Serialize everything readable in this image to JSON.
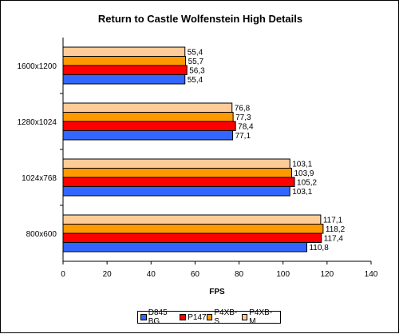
{
  "chart_data": {
    "type": "bar",
    "orientation": "horizontal",
    "title": "Return to Castle Wolfenstein High Details",
    "xlabel": "FPS",
    "ylabel": "",
    "xlim": [
      0,
      140
    ],
    "xticks": [
      0,
      20,
      40,
      60,
      80,
      100,
      120,
      140
    ],
    "categories": [
      "1600x1200",
      "1280x1024",
      "1024x768",
      "800x600"
    ],
    "series": [
      {
        "name": "D845 BG",
        "color": "#3366ff",
        "values": [
          55.4,
          77.1,
          103.1,
          110.8
        ],
        "labels": [
          "55,4",
          "77,1",
          "103,1",
          "110,8"
        ]
      },
      {
        "name": "P147",
        "color": "#ff0000",
        "values": [
          56.3,
          78.4,
          105.2,
          117.4
        ],
        "labels": [
          "56,3",
          "78,4",
          "105,2",
          "117,4"
        ]
      },
      {
        "name": "P4XB-S",
        "color": "#ff9900",
        "values": [
          55.7,
          77.3,
          103.9,
          118.2
        ],
        "labels": [
          "55,7",
          "77,3",
          "103,9",
          "118,2"
        ]
      },
      {
        "name": "P4XB-M",
        "color": "#ffcc99",
        "values": [
          55.4,
          76.8,
          103.1,
          117.1
        ],
        "labels": [
          "55,4",
          "76,8",
          "103,1",
          "117,1"
        ]
      }
    ],
    "legend_position": "bottom",
    "grid": false
  }
}
